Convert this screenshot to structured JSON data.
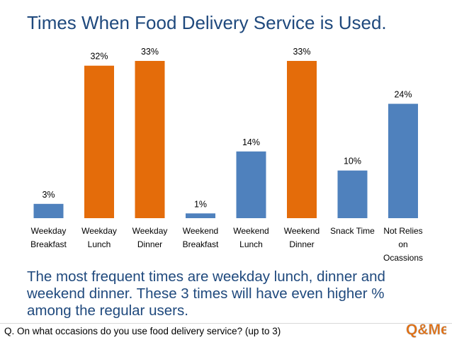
{
  "title": "Times When Food Delivery Service is Used.",
  "summary": "The most frequent times are weekday lunch, dinner and weekend dinner. These 3 times will have even higher % among the regular users.",
  "question": "Q. On what occasions do you use food delivery service? (up to 3)",
  "logo_text": "Q&Me",
  "colors": {
    "blue": "#4f81bd",
    "orange": "#e46c0a",
    "text_blue": "#1f497d"
  },
  "chart_data": {
    "type": "bar",
    "title": "",
    "xlabel": "",
    "ylabel": "",
    "ylim": [
      0,
      33
    ],
    "grid": false,
    "categories": [
      [
        "Weekday",
        "Breakfast"
      ],
      [
        "Weekday",
        "Lunch"
      ],
      [
        "Weekday",
        "Dinner"
      ],
      [
        "Weekend",
        "Breakfast"
      ],
      [
        "Weekend",
        "Lunch"
      ],
      [
        "Weekend",
        "Dinner"
      ],
      [
        "Snack Time"
      ],
      [
        "Not Relies",
        "on",
        "Ocassions"
      ]
    ],
    "values": [
      3,
      32,
      33,
      1,
      14,
      33,
      10,
      24
    ],
    "data_labels": [
      "3%",
      "32%",
      "33%",
      "1%",
      "14%",
      "33%",
      "10%",
      "24%"
    ],
    "bar_colors": [
      "blue",
      "orange",
      "orange",
      "blue",
      "blue",
      "orange",
      "blue",
      "blue"
    ]
  }
}
